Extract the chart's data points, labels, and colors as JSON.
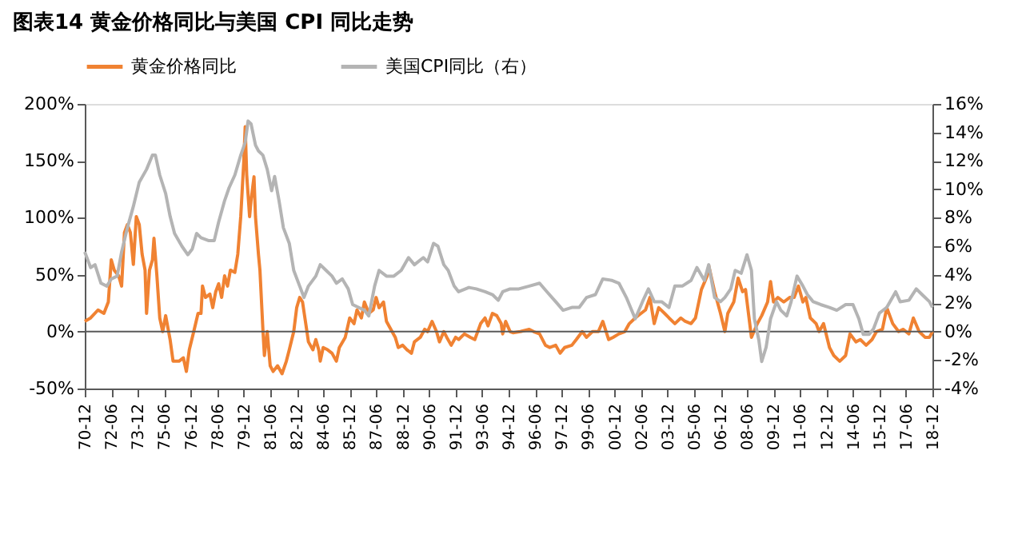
{
  "chart_data": {
    "type": "line",
    "title": "图表14    黄金价格同比与美国 CPI 同比走势",
    "xlim": [
      "1970-12",
      "2018-12"
    ],
    "xticks": [
      {
        "value": "1970-12",
        "label": "70-12"
      },
      {
        "value": "1972-06",
        "label": "72-06"
      },
      {
        "value": "1973-12",
        "label": "73-12"
      },
      {
        "value": "1975-06",
        "label": "75-06"
      },
      {
        "value": "1976-12",
        "label": "76-12"
      },
      {
        "value": "1978-06",
        "label": "78-06"
      },
      {
        "value": "1979-12",
        "label": "79-12"
      },
      {
        "value": "1981-06",
        "label": "81-06"
      },
      {
        "value": "1982-12",
        "label": "82-12"
      },
      {
        "value": "1984-06",
        "label": "84-06"
      },
      {
        "value": "1985-12",
        "label": "85-12"
      },
      {
        "value": "1987-06",
        "label": "87-06"
      },
      {
        "value": "1988-12",
        "label": "88-12"
      },
      {
        "value": "1990-06",
        "label": "90-06"
      },
      {
        "value": "1991-12",
        "label": "91-12"
      },
      {
        "value": "1993-06",
        "label": "93-06"
      },
      {
        "value": "1994-12",
        "label": "94-12"
      },
      {
        "value": "1996-06",
        "label": "96-06"
      },
      {
        "value": "1997-12",
        "label": "97-12"
      },
      {
        "value": "1999-06",
        "label": "99-06"
      },
      {
        "value": "2000-12",
        "label": "00-12"
      },
      {
        "value": "2002-06",
        "label": "02-06"
      },
      {
        "value": "2003-12",
        "label": "03-12"
      },
      {
        "value": "2005-06",
        "label": "05-06"
      },
      {
        "value": "2006-12",
        "label": "06-12"
      },
      {
        "value": "2008-06",
        "label": "08-06"
      },
      {
        "value": "2009-12",
        "label": "09-12"
      },
      {
        "value": "2011-06",
        "label": "11-06"
      },
      {
        "value": "2012-12",
        "label": "12-12"
      },
      {
        "value": "2014-06",
        "label": "14-06"
      },
      {
        "value": "2015-12",
        "label": "15-12"
      },
      {
        "value": "2017-06",
        "label": "17-06"
      },
      {
        "value": "2018-12",
        "label": "18-12"
      }
    ],
    "ylim": [
      -50,
      200
    ],
    "yticks": [
      {
        "value": -50,
        "label": "-50%"
      },
      {
        "value": 0,
        "label": "0%"
      },
      {
        "value": 50,
        "label": "50%"
      },
      {
        "value": 100,
        "label": "100%"
      },
      {
        "value": 150,
        "label": "150%"
      },
      {
        "value": 200,
        "label": "200%"
      }
    ],
    "y2lim": [
      -4,
      16
    ],
    "y2ticks": [
      {
        "value": -4,
        "label": "-4%"
      },
      {
        "value": -2,
        "label": "-2%"
      },
      {
        "value": 0,
        "label": "0%"
      },
      {
        "value": 2,
        "label": "2%"
      },
      {
        "value": 4,
        "label": "4%"
      },
      {
        "value": 6,
        "label": "6%"
      },
      {
        "value": 8,
        "label": "8%"
      },
      {
        "value": 10,
        "label": "10%"
      },
      {
        "value": 12,
        "label": "12%"
      },
      {
        "value": 14,
        "label": "14%"
      },
      {
        "value": 16,
        "label": "16%"
      }
    ],
    "ref_lines": [
      {
        "axis": "y",
        "value": 0,
        "color": "#595959"
      }
    ],
    "grid": false,
    "legend": "top",
    "line_style": "solid",
    "series": [
      {
        "name": "黄金价格同比",
        "color": "#f08232",
        "x": [
          "1970-12",
          "1971-04",
          "1971-09",
          "1972-01",
          "1972-04",
          "1972-06",
          "1972-08",
          "1972-11",
          "1973-01",
          "1973-03",
          "1973-05",
          "1973-07",
          "1973-09",
          "1973-11",
          "1974-01",
          "1974-03",
          "1974-05",
          "1974-06",
          "1974-08",
          "1974-10",
          "1974-11",
          "1975-01",
          "1975-03",
          "1975-05",
          "1975-07",
          "1975-10",
          "1975-12",
          "1976-04",
          "1976-07",
          "1976-09",
          "1976-11",
          "1977-02",
          "1977-05",
          "1977-07",
          "1977-08",
          "1977-10",
          "1978-01",
          "1978-03",
          "1978-05",
          "1978-07",
          "1978-09",
          "1978-11",
          "1979-01",
          "1979-03",
          "1979-06",
          "1979-08",
          "1979-10",
          "1979-12",
          "1980-01",
          "1980-02",
          "1980-04",
          "1980-05",
          "1980-07",
          "1980-08",
          "1980-10",
          "1980-11",
          "1981-01",
          "1981-02",
          "1981-04",
          "1981-06",
          "1981-08",
          "1981-11",
          "1982-02",
          "1982-05",
          "1982-07",
          "1982-10",
          "1982-12",
          "1983-02",
          "1983-04",
          "1983-07",
          "1983-08",
          "1983-11",
          "1984-01",
          "1984-03",
          "1984-04",
          "1984-06",
          "1984-09",
          "1984-12",
          "1985-03",
          "1985-05",
          "1985-09",
          "1985-12",
          "1986-03",
          "1986-05",
          "1986-08",
          "1986-10",
          "1987-01",
          "1987-04",
          "1987-06",
          "1987-08",
          "1987-11",
          "1988-01",
          "1988-04",
          "1988-07",
          "1988-09",
          "1988-12",
          "1989-03",
          "1989-06",
          "1989-08",
          "1989-12",
          "1990-03",
          "1990-05",
          "1990-08",
          "1990-11",
          "1991-01",
          "1991-04",
          "1991-06",
          "1991-09",
          "1991-12",
          "1992-02",
          "1992-06",
          "1992-10",
          "1993-01",
          "1993-05",
          "1993-08",
          "1993-10",
          "1994-01",
          "1994-04",
          "1994-07",
          "1994-08",
          "1994-10",
          "1995-01",
          "1995-03",
          "1995-08",
          "1996-02",
          "1996-05",
          "1996-09",
          "1997-01",
          "1997-04",
          "1997-08",
          "1997-11",
          "1998-02",
          "1998-07",
          "1998-10",
          "1999-02",
          "1999-05",
          "1999-09",
          "2000-01",
          "2000-04",
          "2000-08",
          "2000-11",
          "2001-03",
          "2001-07",
          "2001-10",
          "2002-02",
          "2002-06",
          "2002-09",
          "2002-12",
          "2003-03",
          "2003-06",
          "2003-10",
          "2004-01",
          "2004-05",
          "2004-09",
          "2004-12",
          "2005-04",
          "2005-07",
          "2005-11",
          "2006-03",
          "2006-04",
          "2006-08",
          "2006-12",
          "2007-03",
          "2007-05",
          "2007-09",
          "2007-12",
          "2008-03",
          "2008-05",
          "2008-07",
          "2008-09",
          "2009-01",
          "2009-04",
          "2009-08",
          "2009-10",
          "2009-12",
          "2010-03",
          "2010-07",
          "2010-11",
          "2011-02",
          "2011-05",
          "2011-08",
          "2011-10",
          "2012-01",
          "2012-05",
          "2012-07",
          "2012-10",
          "2013-02",
          "2013-05",
          "2013-09",
          "2014-01",
          "2014-04",
          "2014-08",
          "2014-11",
          "2015-03",
          "2015-07",
          "2015-10",
          "2016-02",
          "2016-05",
          "2016-09",
          "2017-01",
          "2017-04",
          "2017-08",
          "2017-11",
          "2018-03",
          "2018-07",
          "2018-10",
          "2018-12"
        ],
        "values": [
          9,
          12,
          19,
          16,
          26,
          63,
          54,
          49,
          40,
          87,
          94,
          87,
          59,
          101,
          94,
          68,
          54,
          16,
          54,
          63,
          82,
          49,
          12,
          0,
          14,
          -7,
          -26,
          -26,
          -23,
          -35,
          -16,
          0,
          16,
          16,
          40,
          30,
          33,
          21,
          35,
          42,
          30,
          49,
          40,
          54,
          52,
          68,
          101,
          148,
          180,
          138,
          101,
          115,
          136,
          101,
          68,
          54,
          2,
          -21,
          0,
          -30,
          -35,
          -30,
          -37,
          -26,
          -16,
          0,
          21,
          30,
          26,
          0,
          -9,
          -16,
          -7,
          -16,
          -26,
          -14,
          -16,
          -19,
          -26,
          -14,
          -5,
          12,
          7,
          19,
          12,
          26,
          16,
          19,
          30,
          21,
          26,
          9,
          2,
          -5,
          -14,
          -12,
          -16,
          -19,
          -9,
          -5,
          2,
          0,
          9,
          0,
          -9,
          0,
          -5,
          -12,
          -5,
          -7,
          -2,
          -5,
          -7,
          7,
          12,
          5,
          16,
          14,
          7,
          -2,
          9,
          0,
          -1,
          0,
          2,
          0,
          -2,
          -12,
          -14,
          -12,
          -19,
          -14,
          -12,
          -7,
          0,
          -5,
          0,
          0,
          9,
          -7,
          -5,
          -2,
          0,
          7,
          12,
          16,
          19,
          30,
          7,
          21,
          16,
          12,
          7,
          12,
          9,
          7,
          12,
          37,
          49,
          58,
          35,
          16,
          0,
          16,
          26,
          47,
          35,
          37,
          16,
          -5,
          7,
          14,
          26,
          44,
          26,
          30,
          26,
          30,
          30,
          40,
          26,
          30,
          12,
          7,
          0,
          7,
          -14,
          -21,
          -26,
          -21,
          -2,
          -9,
          -7,
          -12,
          -7,
          0,
          2,
          21,
          7,
          0,
          2,
          -2,
          12,
          0,
          -5,
          -5,
          0
        ]
      },
      {
        "name": "美国CPI同比（右）",
        "color": "#b4b4b4",
        "axis": "y2",
        "x": [
          "1970-12",
          "1971-04",
          "1971-07",
          "1971-11",
          "1972-03",
          "1972-06",
          "1972-10",
          "1973-01",
          "1973-05",
          "1973-09",
          "1974-01",
          "1974-06",
          "1974-10",
          "1974-12",
          "1975-03",
          "1975-07",
          "1975-10",
          "1976-01",
          "1976-06",
          "1976-10",
          "1977-01",
          "1977-04",
          "1977-07",
          "1977-12",
          "1978-04",
          "1978-07",
          "1978-11",
          "1979-02",
          "1979-06",
          "1979-10",
          "1980-01",
          "1980-03",
          "1980-05",
          "1980-08",
          "1980-10",
          "1981-01",
          "1981-04",
          "1981-07",
          "1981-09",
          "1981-12",
          "1982-03",
          "1982-07",
          "1982-10",
          "1983-02",
          "1983-05",
          "1983-08",
          "1984-01",
          "1984-04",
          "1984-08",
          "1984-12",
          "1985-03",
          "1985-07",
          "1985-11",
          "1986-02",
          "1986-06",
          "1986-10",
          "1987-01",
          "1987-05",
          "1987-08",
          "1988-01",
          "1988-06",
          "1988-11",
          "1989-04",
          "1989-08",
          "1990-02",
          "1990-05",
          "1990-09",
          "1990-12",
          "1991-04",
          "1991-07",
          "1991-11",
          "1992-02",
          "1992-09",
          "1993-02",
          "1993-08",
          "1994-01",
          "1994-05",
          "1994-08",
          "1995-01",
          "1995-07",
          "1996-02",
          "1996-09",
          "1997-02",
          "1997-08",
          "1998-01",
          "1998-07",
          "1998-12",
          "1999-05",
          "1999-11",
          "2000-04",
          "2000-10",
          "2001-03",
          "2001-08",
          "2002-02",
          "2002-07",
          "2002-11",
          "2003-03",
          "2003-08",
          "2004-01",
          "2004-05",
          "2004-10",
          "2005-04",
          "2005-08",
          "2006-01",
          "2006-04",
          "2006-08",
          "2006-12",
          "2007-03",
          "2007-07",
          "2007-10",
          "2008-02",
          "2008-06",
          "2008-09",
          "2008-11",
          "2009-02",
          "2009-04",
          "2009-07",
          "2009-10",
          "2010-02",
          "2010-05",
          "2010-09",
          "2010-12",
          "2011-04",
          "2011-08",
          "2011-11",
          "2012-03",
          "2012-08",
          "2013-02",
          "2013-07",
          "2014-01",
          "2014-06",
          "2014-10",
          "2015-01",
          "2015-05",
          "2015-08",
          "2015-12",
          "2016-05",
          "2016-11",
          "2017-02",
          "2017-08",
          "2018-01",
          "2018-05",
          "2018-10",
          "2018-12"
        ],
        "values": [
          5.6,
          4.5,
          4.7,
          3.4,
          3.2,
          3.7,
          3.9,
          5.6,
          7.3,
          8.8,
          10.5,
          11.4,
          12.4,
          12.4,
          11.0,
          9.7,
          8.1,
          6.9,
          6.0,
          5.4,
          5.8,
          6.9,
          6.6,
          6.4,
          6.4,
          7.7,
          9.2,
          10.1,
          11.0,
          12.4,
          13.3,
          14.8,
          14.6,
          13.1,
          12.7,
          12.4,
          11.4,
          9.9,
          10.9,
          9.2,
          7.3,
          6.2,
          4.3,
          3.2,
          2.4,
          3.2,
          3.9,
          4.7,
          4.3,
          3.9,
          3.4,
          3.7,
          3.0,
          1.9,
          1.7,
          1.5,
          1.1,
          3.2,
          4.3,
          3.9,
          3.9,
          4.3,
          5.2,
          4.7,
          5.2,
          4.9,
          6.2,
          6.0,
          4.7,
          4.3,
          3.2,
          2.8,
          3.1,
          3.0,
          2.8,
          2.6,
          2.2,
          2.8,
          3.0,
          3.0,
          3.2,
          3.4,
          2.8,
          2.1,
          1.5,
          1.7,
          1.7,
          2.4,
          2.6,
          3.7,
          3.6,
          3.4,
          2.4,
          0.9,
          2.1,
          3.0,
          2.1,
          2.1,
          1.7,
          3.2,
          3.2,
          3.6,
          4.5,
          3.6,
          4.7,
          2.4,
          2.1,
          2.4,
          3.0,
          4.3,
          4.1,
          5.4,
          4.3,
          0.9,
          -0.6,
          -2.1,
          -1.1,
          0.9,
          2.1,
          1.5,
          1.1,
          2.1,
          3.9,
          3.2,
          2.6,
          2.1,
          1.9,
          1.7,
          1.5,
          1.9,
          1.9,
          0.9,
          -0.2,
          -0.2,
          0.2,
          1.3,
          1.7,
          2.8,
          2.1,
          2.2,
          3.0,
          2.6,
          2.1,
          1.7
        ]
      }
    ]
  }
}
